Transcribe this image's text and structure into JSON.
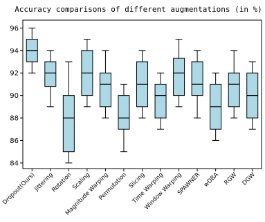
{
  "chart_data": {
    "type": "box",
    "title": "Accuracy comparisons of different augmentations (in %)",
    "xlabel": "",
    "ylabel": "",
    "ylim": [
      83.5,
      96.7
    ],
    "yticks": [
      84,
      86,
      88,
      90,
      92,
      94,
      96
    ],
    "grid": false,
    "box_color": "#add8e6",
    "median_color": "#000000",
    "categories": [
      "Dropout(Ours)",
      "Jittering",
      "Rotation",
      "Scaling",
      "Magnitude Warping",
      "Permutation",
      "Slicing",
      "Time Warping",
      "Window Warping",
      "SPAWNER",
      "wDBA",
      "RGW",
      "DGW"
    ],
    "boxes": [
      {
        "min": 92,
        "q1": 93,
        "median": 94,
        "q3": 95,
        "max": 96
      },
      {
        "min": 89,
        "q1": 90.8,
        "median": 92,
        "q3": 93,
        "max": 94
      },
      {
        "min": 84,
        "q1": 85,
        "median": 88,
        "q3": 90,
        "max": 93
      },
      {
        "min": 89,
        "q1": 90,
        "median": 92,
        "q3": 94,
        "max": 95
      },
      {
        "min": 88,
        "q1": 89,
        "median": 91,
        "q3": 92,
        "max": 94
      },
      {
        "min": 85,
        "q1": 87,
        "median": 88,
        "q3": 90,
        "max": 91
      },
      {
        "min": 88,
        "q1": 89,
        "median": 91,
        "q3": 93,
        "max": 94
      },
      {
        "min": 87,
        "q1": 88,
        "median": 90,
        "q3": 91,
        "max": 92
      },
      {
        "min": 89,
        "q1": 90,
        "median": 92,
        "q3": 93.3,
        "max": 95
      },
      {
        "min": 88,
        "q1": 90,
        "median": 91,
        "q3": 93,
        "max": 94
      },
      {
        "min": 86,
        "q1": 87,
        "median": 89,
        "q3": 91,
        "max": 92
      },
      {
        "min": 88,
        "q1": 89,
        "median": 91,
        "q3": 92,
        "max": 94
      },
      {
        "min": 87,
        "q1": 88,
        "median": 90,
        "q3": 92,
        "max": 93
      }
    ]
  }
}
